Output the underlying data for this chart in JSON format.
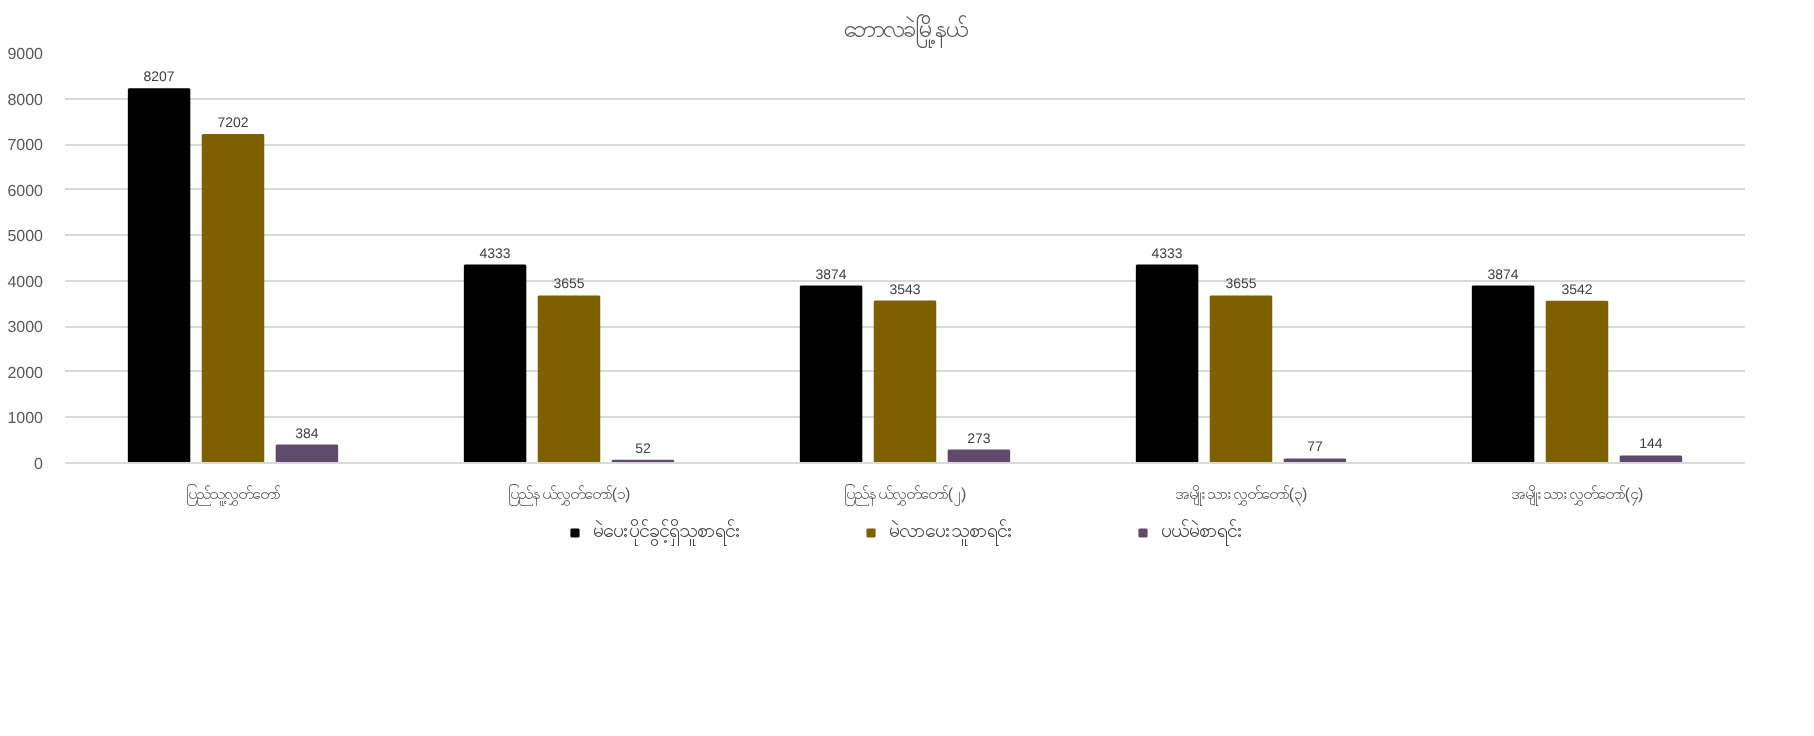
{
  "chart_data": {
    "type": "bar",
    "title": "ဘောလခဲမြို့နယ်",
    "categories": [
      "ပြည်သူ့လွှတ်တော်",
      "ပြည်နယ်လွှတ်တော်(၁)",
      "ပြည်နယ်လွှတ်တော်(၂)",
      "အမျိုးသားလွှတ်တော်(၃)",
      "အမျိုးသားလွှတ်တော်(၄)"
    ],
    "series": [
      {
        "name": "မဲပေးပိုင်ခွင့်ရှိသူစာရင်း",
        "color": "#000000",
        "values": [
          8207,
          4333,
          3874,
          4333,
          3874
        ]
      },
      {
        "name": "မဲလာပေးသူစာရင်း",
        "color": "#7f6000",
        "values": [
          7202,
          3655,
          3543,
          3655,
          3542
        ]
      },
      {
        "name": "ပယ်မဲစာရင်း",
        "color": "#604a6b",
        "values": [
          384,
          52,
          273,
          77,
          144
        ]
      }
    ],
    "ylim": [
      0,
      9000
    ],
    "yticks": [
      0,
      1000,
      2000,
      3000,
      4000,
      5000,
      6000,
      7000,
      8000,
      9000
    ],
    "grid": "y",
    "legend": "bottom",
    "data_labels": true
  }
}
